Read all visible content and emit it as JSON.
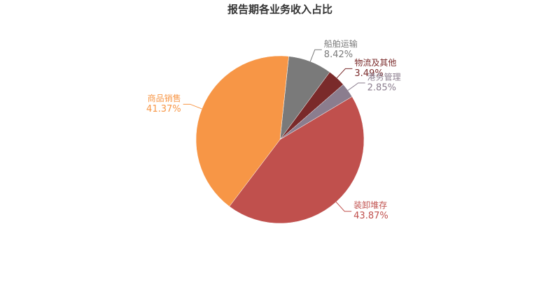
{
  "chart_data": {
    "type": "pie",
    "title": "报告期各业务收入占比",
    "categories": [
      "船舶运输",
      "物流及其他",
      "港务管理",
      "装卸堆存",
      "商品销售"
    ],
    "values": [
      8.42,
      3.49,
      2.85,
      43.87,
      41.37
    ],
    "value_labels": [
      "8.42%",
      "3.49%",
      "2.85%",
      "43.87%",
      "41.37%"
    ],
    "colors": [
      "#7a7a7a",
      "#7a2a2a",
      "#8b7d8e",
      "#c0504d",
      "#f79646"
    ]
  }
}
